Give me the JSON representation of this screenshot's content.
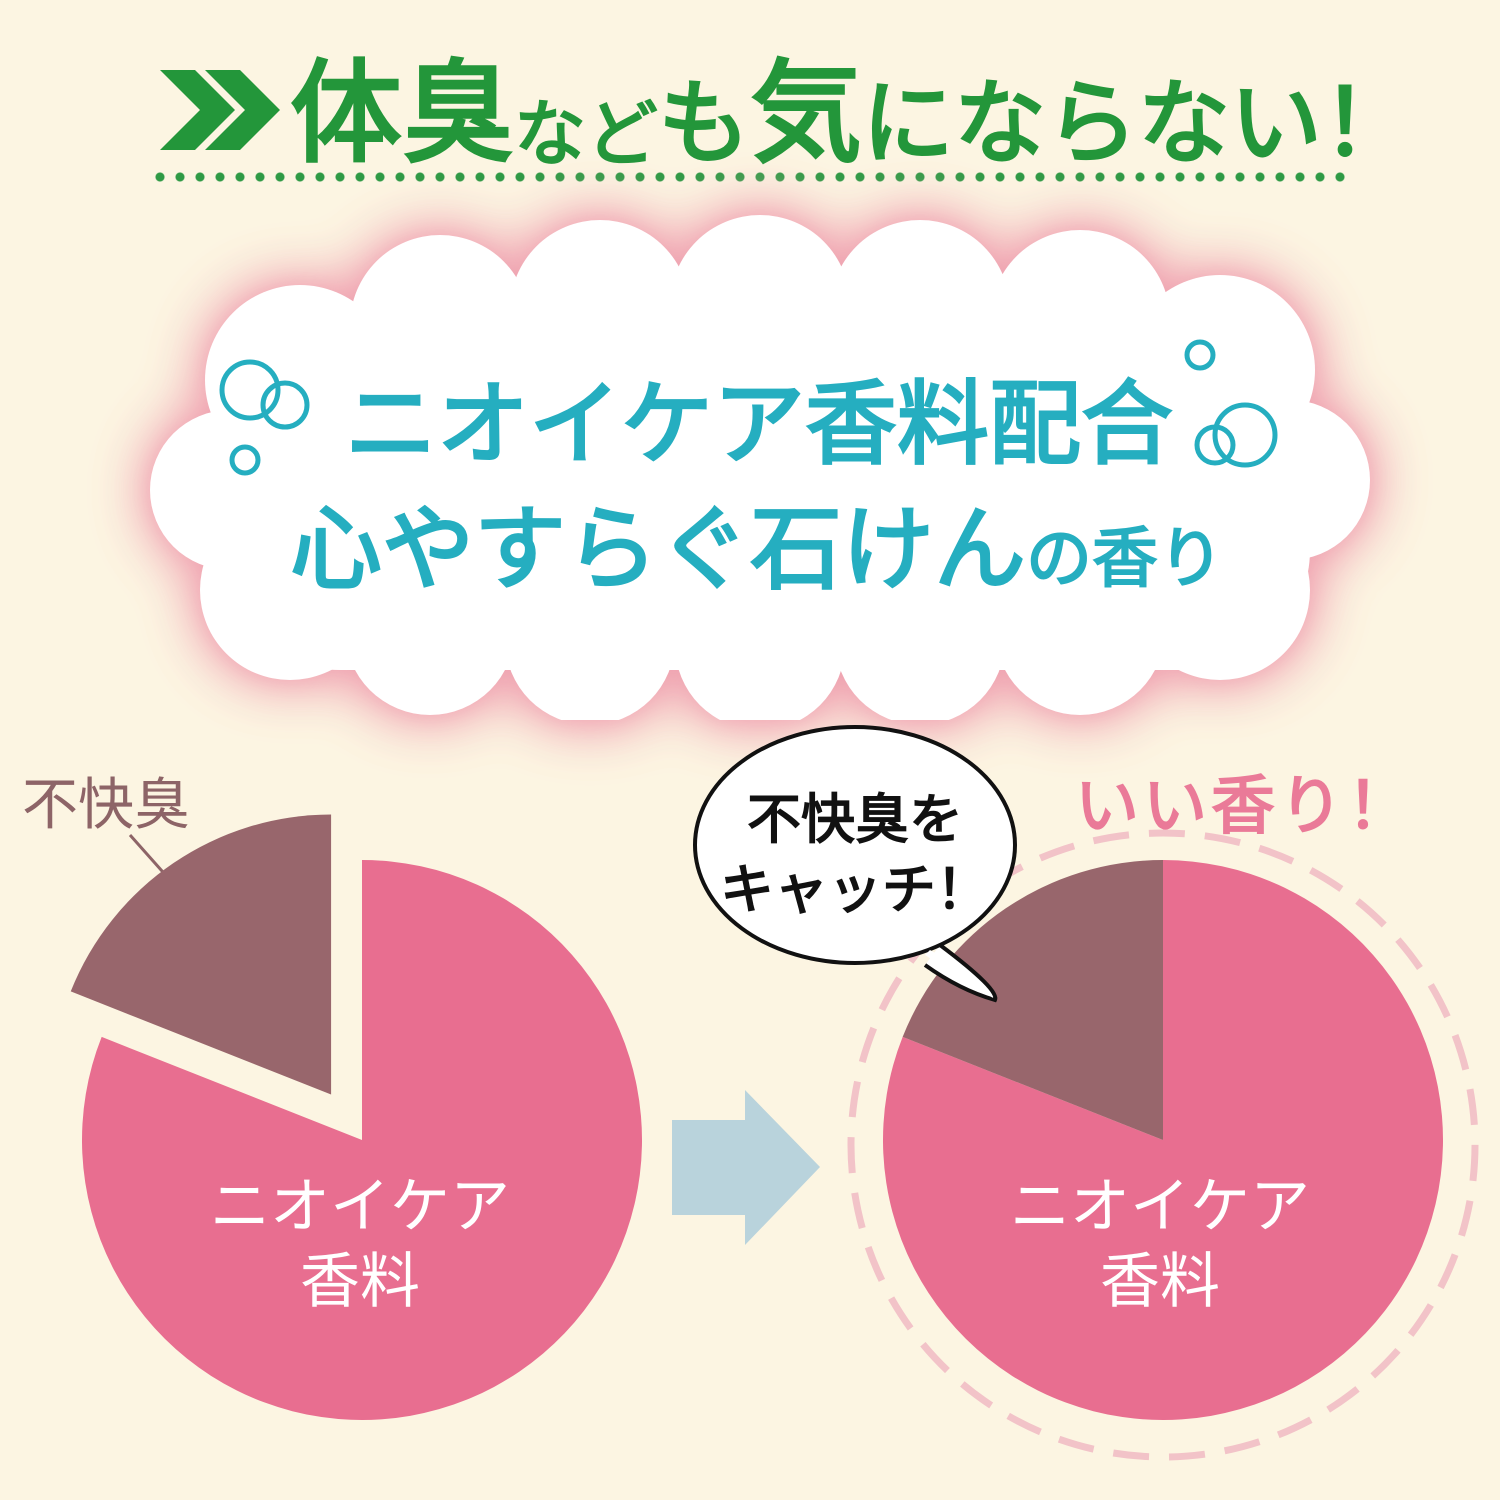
{
  "header": {
    "title_parts": [
      "体臭",
      "など",
      "も",
      "気",
      "にならない！"
    ],
    "chevron_icon": "double-chevron-right-icon",
    "accent_color": "#23963a"
  },
  "cloud": {
    "line1": "ニオイケア香料配合",
    "line2_main": "心やすらぐ石けん",
    "line2_small": "の香り",
    "text_color": "#25aec0",
    "decor_icon": "bubbles-icon"
  },
  "before_pie": {
    "odor_label": "不快臭",
    "fragrance_label_line1": "ニオイケア",
    "fragrance_label_line2": "香料",
    "odor_fraction": 0.19,
    "fragrance_fraction": 0.81,
    "odor_color": "#98666c",
    "fragrance_color": "#e86e90"
  },
  "arrow_icon": "arrow-right-icon",
  "after_pie": {
    "good_label": "いい香り！",
    "bubble_line1": "不快臭を",
    "bubble_line2": "キャッチ！",
    "fragrance_label_line1": "ニオイケア",
    "fragrance_label_line2": "香料",
    "odor_fraction": 0.19,
    "fragrance_fraction": 0.81,
    "odor_color": "#98666c",
    "fragrance_color": "#e86e90"
  }
}
